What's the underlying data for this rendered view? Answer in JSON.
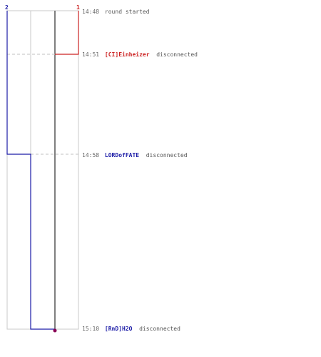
{
  "colors": {
    "team_blue": "#1a1aa6",
    "team_red": "#cc2222",
    "grid": "#c8c8c8",
    "guide": "#c0c0c0",
    "center_line": "#555555",
    "time_text": "#666666",
    "event_text": "#555555",
    "end_marker": "#880055"
  },
  "teams": [
    {
      "label": "2",
      "color": "#1a1aa6"
    },
    {
      "label": "1",
      "color": "#cc2222"
    }
  ],
  "events": [
    {
      "time": "14:48",
      "player": "",
      "player_color": "",
      "text": "round started"
    },
    {
      "time": "14:51",
      "player": "[CI]Einheizer",
      "player_color": "#cc2222",
      "text": " disconnected"
    },
    {
      "time": "14:58",
      "player": "LORDofFATE",
      "player_color": "#1a1aa6",
      "text": " disconnected"
    },
    {
      "time": "15:10",
      "player": "[RnD]H2O",
      "player_color": "#1a1aa6",
      "text": " disconnected"
    }
  ]
}
